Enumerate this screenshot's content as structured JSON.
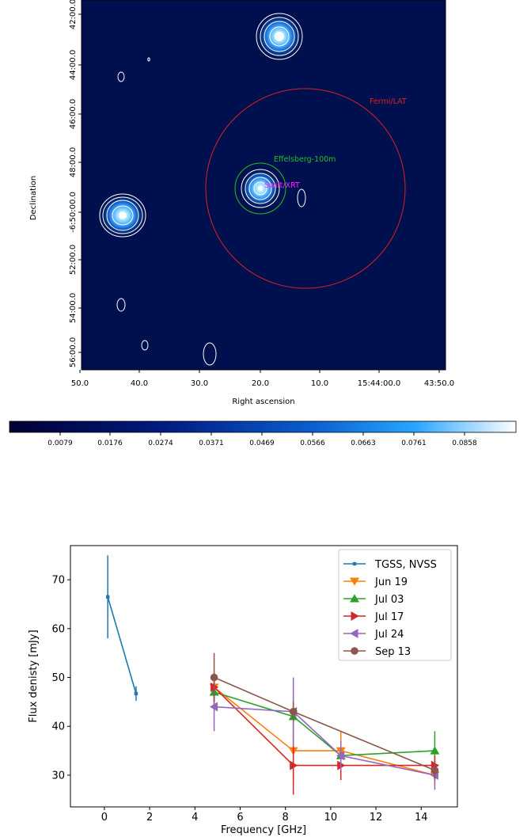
{
  "chart_data": [
    {
      "type": "heatmap",
      "xlabel": "Right ascension",
      "ylabel": "Declination",
      "x_tick_labels": [
        "50.0",
        "40.0",
        "30.0",
        "20.0",
        "10.0",
        "15:44:00.0",
        "43:50.0"
      ],
      "y_tick_labels": [
        "42:00.0",
        "44:00.0",
        "46:00.0",
        "48:00.0",
        "-6:50:00.0",
        "52:00.0",
        "54:00.0",
        "56:00.0"
      ],
      "annotations": [
        {
          "label": "Fermi/LAT",
          "color": "#dd2020"
        },
        {
          "label": "Effelsberg-100m",
          "color": "#22c022"
        },
        {
          "label": "Swift/XRT",
          "color": "#ff22ff"
        }
      ],
      "colorbar": {
        "tick_labels": [
          "0.0079",
          "0.0176",
          "0.0274",
          "0.0371",
          "0.0469",
          "0.0566",
          "0.0663",
          "0.0761",
          "0.0858"
        ],
        "colors": [
          "#000033",
          "#001a80",
          "#0a5fd0",
          "#26a6ff",
          "#ffffff"
        ]
      },
      "background_color": "#00104f"
    },
    {
      "type": "line",
      "xlabel": "Frequency [GHz]",
      "ylabel": "Flux denisty [mJy]",
      "xlim": [
        -1.5,
        15.6
      ],
      "ylim": [
        23.5,
        77
      ],
      "xticks": [
        0,
        2,
        4,
        6,
        8,
        10,
        12,
        14
      ],
      "yticks": [
        30,
        40,
        50,
        60,
        70
      ],
      "grid": false,
      "legend_position": "top-right",
      "series": [
        {
          "name": "TGSS, NVSS",
          "color": "#1f77b4",
          "marker": "square",
          "x": [
            0.15,
            1.4
          ],
          "y": [
            66.5,
            46.7
          ],
          "yerr": [
            8.5,
            1.5
          ]
        },
        {
          "name": "Jun 19",
          "color": "#ff7f0e",
          "marker": "triangle-down",
          "x": [
            4.85,
            8.35,
            10.45,
            14.6
          ],
          "y": [
            48,
            35,
            35,
            30
          ],
          "yerr": [
            3,
            6,
            4,
            2
          ]
        },
        {
          "name": "Jul 03",
          "color": "#2ca02c",
          "marker": "triangle-up",
          "x": [
            4.85,
            8.35,
            10.45,
            14.6
          ],
          "y": [
            47,
            42,
            34,
            35
          ],
          "yerr": [
            3,
            4,
            3,
            4
          ]
        },
        {
          "name": "Jul 17",
          "color": "#d62728",
          "marker": "triangle-right",
          "x": [
            4.85,
            8.35,
            10.45,
            14.6
          ],
          "y": [
            48,
            32,
            32,
            32
          ],
          "yerr": [
            3,
            6,
            3,
            2
          ]
        },
        {
          "name": "Jul 24",
          "color": "#9467bd",
          "marker": "triangle-left",
          "x": [
            4.85,
            8.35,
            10.45,
            14.6
          ],
          "y": [
            44,
            43,
            34,
            30
          ],
          "yerr": [
            5,
            7,
            3,
            3
          ]
        },
        {
          "name": "Sep 13",
          "color": "#8c564b",
          "marker": "circle",
          "x": [
            4.85,
            8.35,
            14.6
          ],
          "y": [
            50,
            43,
            31
          ],
          "yerr": [
            5,
            2,
            2
          ]
        }
      ]
    }
  ]
}
